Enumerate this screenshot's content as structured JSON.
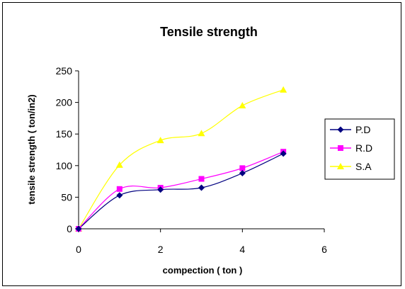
{
  "chart_data": {
    "type": "line",
    "title": "Tensile strength",
    "xlabel": "compection ( ton )",
    "ylabel": "tensile strength ( ton/in2)",
    "xlim": [
      0,
      6
    ],
    "ylim": [
      0,
      250
    ],
    "xticks": [
      0,
      2,
      4,
      6
    ],
    "yticks": [
      0,
      50,
      100,
      150,
      200,
      250
    ],
    "grid": false,
    "legend_position": "right",
    "x": [
      0,
      1,
      2,
      3,
      4,
      5
    ],
    "series": [
      {
        "name": "P.D",
        "values": [
          0,
          53,
          62,
          65,
          88,
          119
        ],
        "color": "#000080",
        "marker": "diamond"
      },
      {
        "name": "R.D",
        "values": [
          0,
          63,
          65,
          79,
          96,
          122
        ],
        "color": "#FF00FF",
        "marker": "square"
      },
      {
        "name": "S.A",
        "values": [
          0,
          101,
          140,
          151,
          195,
          220
        ],
        "color": "#FFFF00",
        "marker": "triangle"
      }
    ]
  }
}
